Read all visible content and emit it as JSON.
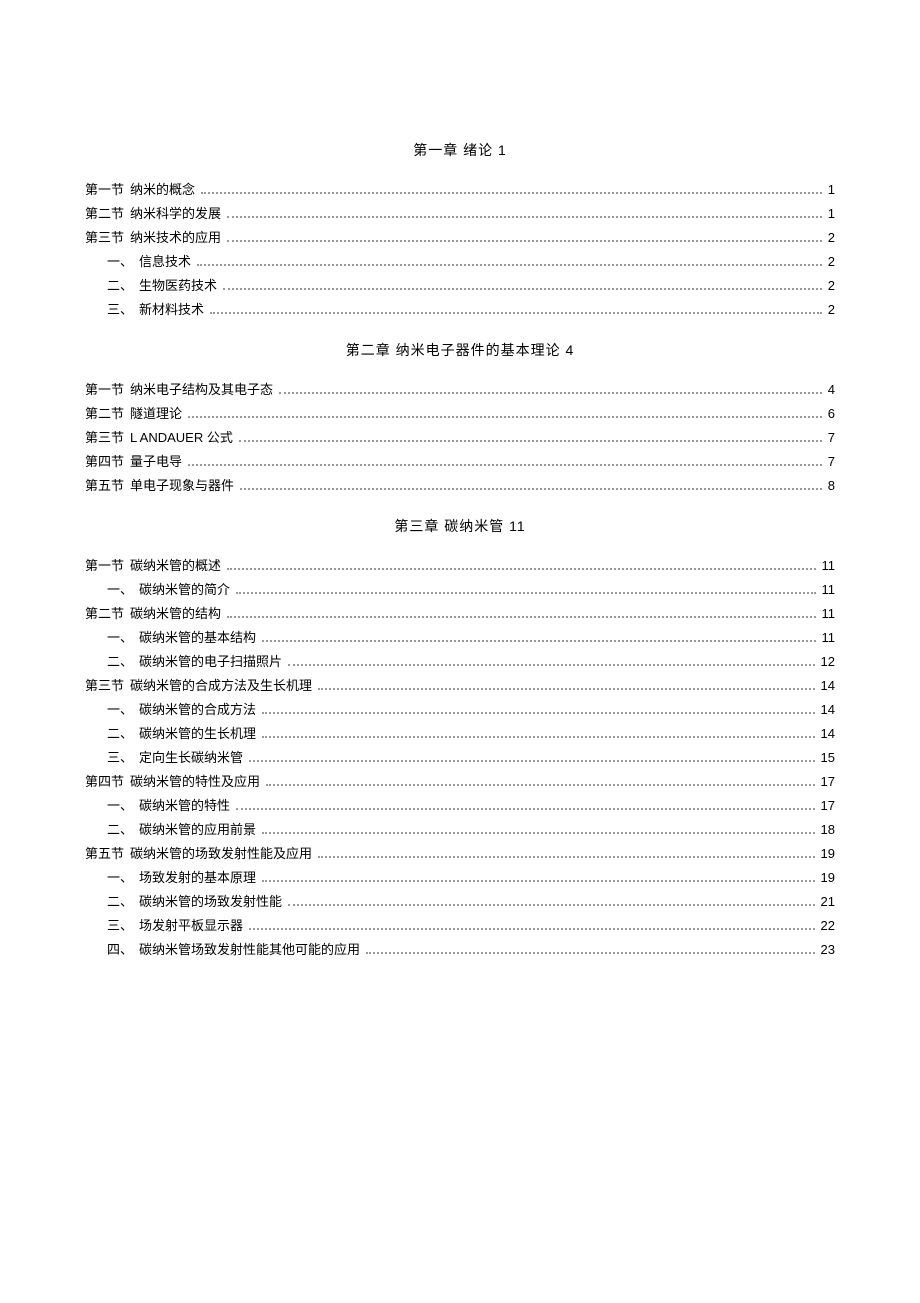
{
  "chapters": [
    {
      "title": "第一章 绪论 1",
      "entries": [
        {
          "label": "第一节",
          "text": "纳米的概念",
          "page": "1",
          "level": 1
        },
        {
          "label": "第二节",
          "text": "纳米科学的发展",
          "page": "1",
          "level": 1
        },
        {
          "label": "第三节",
          "text": "纳米技术的应用",
          "page": "2",
          "level": 1
        },
        {
          "label": "一、",
          "text": "信息技术",
          "page": "2",
          "level": 2
        },
        {
          "label": "二、",
          "text": "生物医药技术",
          "page": "2",
          "level": 2
        },
        {
          "label": "三、",
          "text": "新材料技术",
          "page": "2",
          "level": 2
        }
      ]
    },
    {
      "title": "第二章 纳米电子器件的基本理论 4",
      "entries": [
        {
          "label": "第一节",
          "text": "纳米电子结构及其电子态",
          "page": "4",
          "level": 1
        },
        {
          "label": "第二节",
          "text": "隧道理论",
          "page": "6",
          "level": 1
        },
        {
          "label": "第三节",
          "text": "L ANDAUER 公式",
          "page": "7",
          "level": 1
        },
        {
          "label": "第四节",
          "text": "量子电导",
          "page": "7",
          "level": 1
        },
        {
          "label": "第五节",
          "text": "单电子现象与器件",
          "page": "8",
          "level": 1
        }
      ]
    },
    {
      "title": "第三章 碳纳米管 11",
      "entries": [
        {
          "label": "第一节",
          "text": "碳纳米管的概述",
          "page": "11",
          "level": 1
        },
        {
          "label": "一、",
          "text": "碳纳米管的简介",
          "page": "11",
          "level": 2
        },
        {
          "label": "第二节",
          "text": "碳纳米管的结构",
          "page": "11",
          "level": 1
        },
        {
          "label": "一、",
          "text": "碳纳米管的基本结构",
          "page": "11",
          "level": 2
        },
        {
          "label": "二、",
          "text": "碳纳米管的电子扫描照片",
          "page": "12",
          "level": 2
        },
        {
          "label": "第三节",
          "text": "碳纳米管的合成方法及生长机理",
          "page": "14",
          "level": 1
        },
        {
          "label": "一、",
          "text": "碳纳米管的合成方法",
          "page": "14",
          "level": 2
        },
        {
          "label": "二、",
          "text": "碳纳米管的生长机理",
          "page": "14",
          "level": 2
        },
        {
          "label": "三、",
          "text": "定向生长碳纳米管",
          "page": "15",
          "level": 2
        },
        {
          "label": "第四节",
          "text": "碳纳米管的特性及应用",
          "page": "17",
          "level": 1
        },
        {
          "label": "一、",
          "text": "碳纳米管的特性",
          "page": "17",
          "level": 2
        },
        {
          "label": "二、",
          "text": "碳纳米管的应用前景",
          "page": "18",
          "level": 2
        },
        {
          "label": "第五节",
          "text": "碳纳米管的场致发射性能及应用",
          "page": "19",
          "level": 1
        },
        {
          "label": "一、",
          "text": "场致发射的基本原理",
          "page": "19",
          "level": 2
        },
        {
          "label": "二、",
          "text": "碳纳米管的场致发射性能",
          "page": "21",
          "level": 2
        },
        {
          "label": "三、",
          "text": "场发射平板显示器",
          "page": "22",
          "level": 2
        },
        {
          "label": "四、",
          "text": "碳纳米管场致发射性能其他可能的应用",
          "page": "23",
          "level": 2
        }
      ]
    }
  ],
  "colors": {
    "text": "#000000",
    "background": "#ffffff",
    "leader": "#999999"
  },
  "typography": {
    "body_fontsize": 13,
    "chapter_title_fontsize": 14,
    "line_height": 24
  }
}
